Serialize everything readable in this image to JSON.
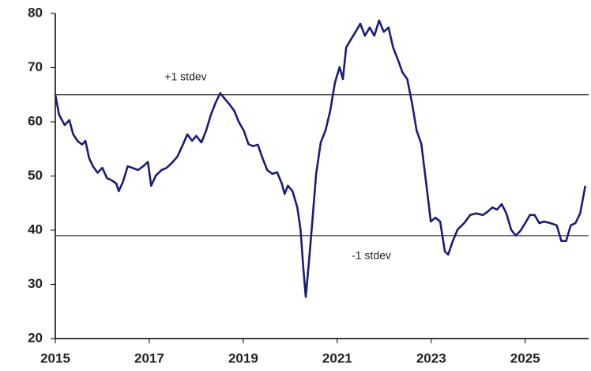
{
  "chart_data": {
    "type": "line",
    "x": [
      2015.0,
      2015.08,
      2015.2,
      2015.3,
      2015.38,
      2015.47,
      2015.57,
      2015.64,
      2015.72,
      2015.8,
      2015.9,
      2016.0,
      2016.1,
      2016.2,
      2016.3,
      2016.35,
      2016.44,
      2016.54,
      2016.64,
      2016.76,
      2016.87,
      2016.97,
      2017.04,
      2017.14,
      2017.26,
      2017.37,
      2017.5,
      2017.6,
      2017.7,
      2017.81,
      2017.91,
      2018.0,
      2018.11,
      2018.21,
      2018.31,
      2018.41,
      2018.51,
      2018.61,
      2018.71,
      2018.81,
      2018.91,
      2019.01,
      2019.11,
      2019.21,
      2019.31,
      2019.41,
      2019.51,
      2019.62,
      2019.72,
      2019.82,
      2019.88,
      2019.95,
      2020.05,
      2020.15,
      2020.22,
      2020.28,
      2020.33,
      2020.4,
      2020.47,
      2020.55,
      2020.65,
      2020.75,
      2020.85,
      2020.95,
      2021.05,
      2021.12,
      2021.19,
      2021.29,
      2021.39,
      2021.49,
      2021.59,
      2021.69,
      2021.79,
      2021.89,
      2021.99,
      2022.09,
      2022.19,
      2022.29,
      2022.39,
      2022.49,
      2022.59,
      2022.69,
      2022.79,
      2022.89,
      2022.99,
      2023.09,
      2023.19,
      2023.29,
      2023.36,
      2023.46,
      2023.56,
      2023.7,
      2023.83,
      2023.96,
      2024.1,
      2024.2,
      2024.3,
      2024.4,
      2024.5,
      2024.6,
      2024.7,
      2024.8,
      2024.9,
      2025.0,
      2025.1,
      2025.2,
      2025.3,
      2025.4,
      2025.54,
      2025.67,
      2025.77,
      2025.87,
      2025.97,
      2026.07,
      2026.17,
      2026.28
    ],
    "series": [
      {
        "color": "#1c1c78",
        "values": [
          65,
          61.3,
          59.4,
          60.3,
          57.7,
          56.5,
          55.8,
          56.5,
          53.3,
          51.8,
          50.6,
          51.5,
          49.6,
          49.2,
          48.6,
          47.2,
          48.9,
          51.8,
          51.5,
          51.1,
          51.8,
          52.6,
          48.2,
          50.1,
          51.1,
          51.5,
          52.6,
          53.6,
          55.5,
          57.7,
          56.5,
          57.4,
          56.2,
          58.4,
          61.3,
          63.5,
          65.3,
          64.2,
          63.2,
          62.0,
          59.9,
          58.4,
          55.9,
          55.5,
          55.8,
          53.3,
          51.1,
          50.4,
          50.7,
          48.6,
          46.7,
          48.2,
          47.2,
          44.2,
          40.1,
          32.8,
          27.7,
          34.3,
          41.6,
          50.4,
          56.2,
          58.4,
          62.0,
          67.2,
          70.1,
          67.9,
          73.7,
          75.2,
          76.6,
          78.1,
          75.9,
          77.4,
          75.9,
          78.7,
          76.6,
          77.4,
          73.7,
          71.5,
          69.1,
          67.9,
          63.5,
          58.4,
          55.9,
          48.9,
          41.6,
          42.3,
          41.6,
          36.1,
          35.5,
          38.0,
          40.1,
          41.3,
          42.8,
          43.1,
          42.8,
          43.4,
          44.2,
          43.8,
          44.8,
          43.1,
          40.1,
          39.0,
          39.9,
          41.3,
          42.8,
          42.8,
          41.3,
          41.6,
          41.3,
          40.9,
          38.0,
          38.0,
          40.9,
          41.3,
          43.1,
          48.2
        ]
      }
    ],
    "reference_lines": [
      {
        "value": 65,
        "label": "+1 stdev"
      },
      {
        "value": 39,
        "label": "-1 stdev"
      }
    ],
    "xlim": [
      2015,
      2026.35
    ],
    "xticks": [
      2015,
      2017,
      2019,
      2021,
      2023,
      2025
    ],
    "ylim": [
      20,
      80
    ],
    "yticks": [
      20,
      30,
      40,
      50,
      60,
      70,
      80
    ],
    "grid": false
  }
}
